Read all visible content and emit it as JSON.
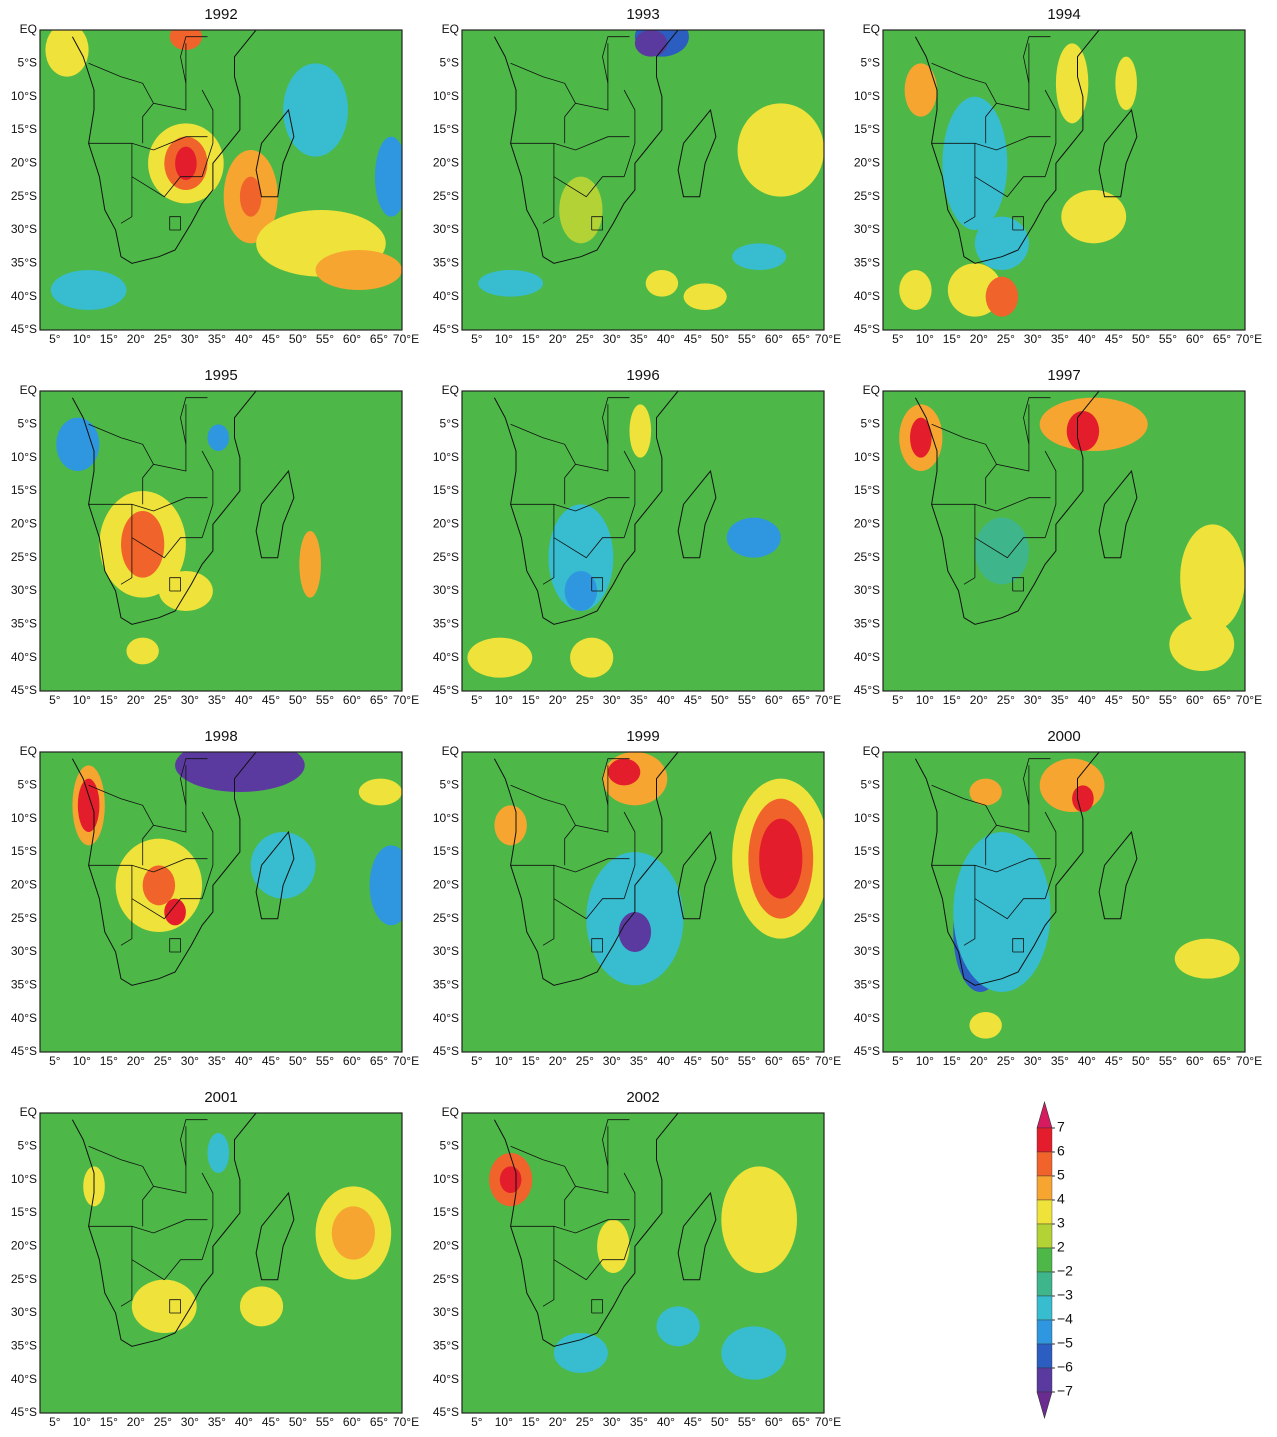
{
  "panels": [
    {
      "title": "1992"
    },
    {
      "title": "1993"
    },
    {
      "title": "1994"
    },
    {
      "title": "1995"
    },
    {
      "title": "1996"
    },
    {
      "title": "1997"
    },
    {
      "title": "1998"
    },
    {
      "title": "1999"
    },
    {
      "title": "2000"
    },
    {
      "title": "2001"
    },
    {
      "title": "2002"
    }
  ],
  "lat_labels": [
    "EQ",
    "5°S",
    "10°S",
    "15°S",
    "20°S",
    "25°S",
    "30°S",
    "35°S",
    "40°S",
    "45°S"
  ],
  "lon_labels": [
    "5°",
    "10°",
    "15°",
    "20°",
    "25°",
    "30°",
    "35°",
    "40°",
    "45°",
    "50°",
    "55°",
    "60°",
    "65°",
    "70°E"
  ],
  "colorbar": {
    "levels": [
      {
        "value": 7,
        "label": "7"
      },
      {
        "value": 6,
        "label": "6"
      },
      {
        "value": 5,
        "label": "5"
      },
      {
        "value": 4,
        "label": "4"
      },
      {
        "value": 3,
        "label": "3"
      },
      {
        "value": 2,
        "label": "2"
      },
      {
        "value": -2,
        "label": "−2"
      },
      {
        "value": -3,
        "label": "−3"
      },
      {
        "value": -4,
        "label": "−4"
      },
      {
        "value": -5,
        "label": "−5"
      },
      {
        "value": -6,
        "label": "−6"
      },
      {
        "value": -7,
        "label": "−7"
      }
    ],
    "colors": [
      "#d81b60",
      "#e31d2b",
      "#f0632a",
      "#f6a531",
      "#efe23a",
      "#b3d236",
      "#4db848",
      "#3fb58c",
      "#38bcd0",
      "#2f96e0",
      "#2c5dc0",
      "#5b3aa0",
      "#6a2c91"
    ]
  }
}
